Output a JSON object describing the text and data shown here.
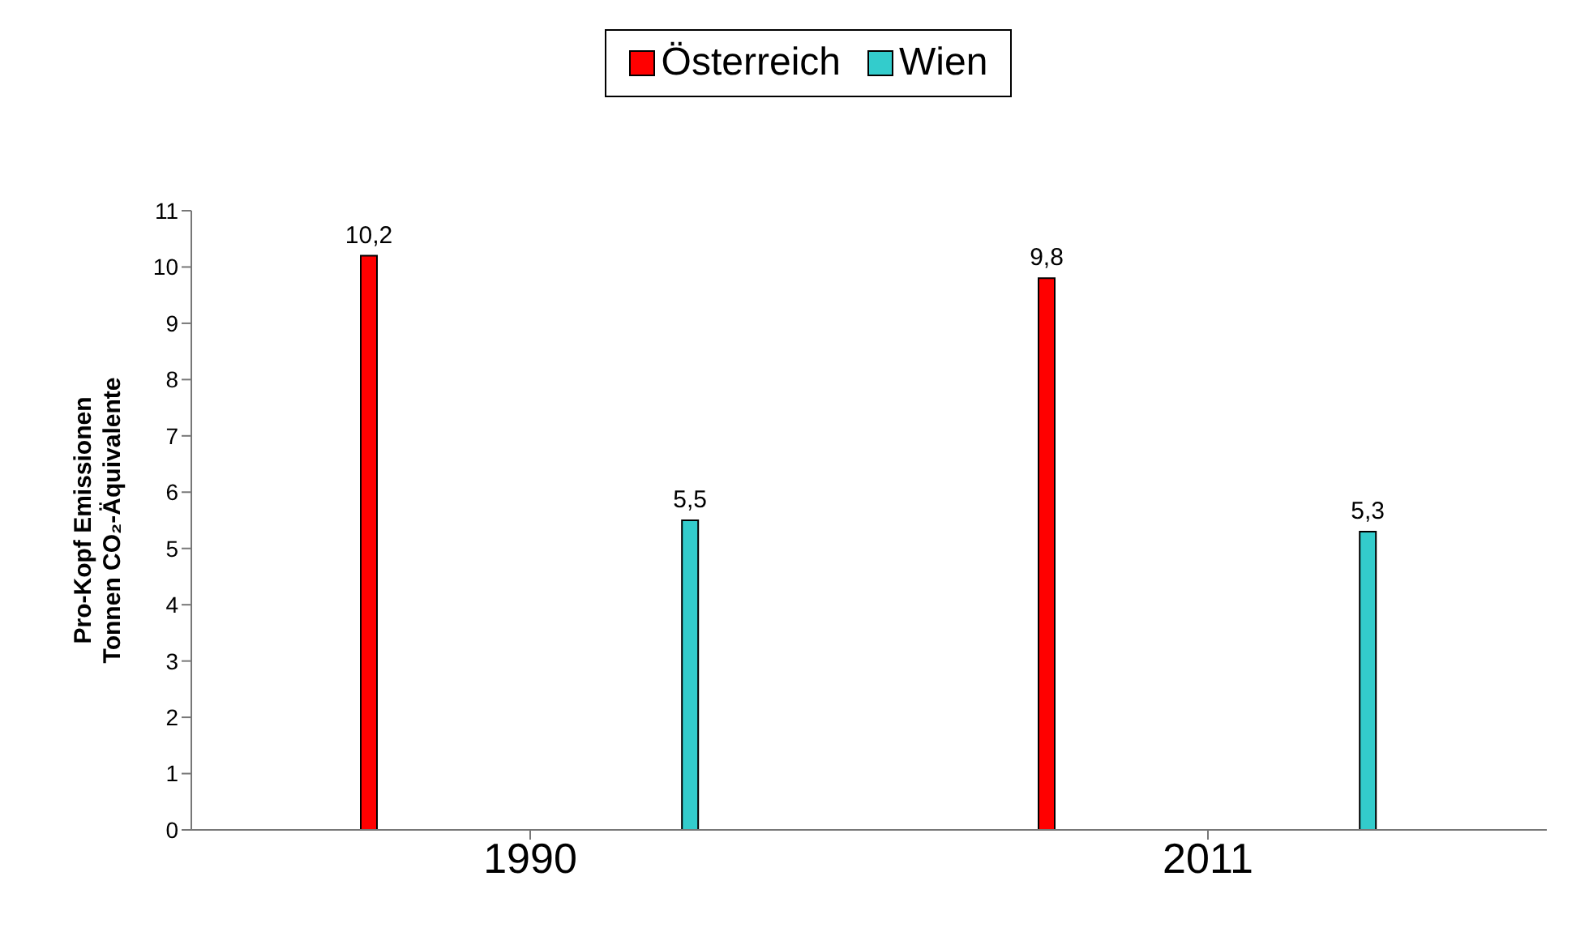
{
  "chart_data": {
    "type": "bar",
    "ylabel": "Pro-Kopf Emissionen\nTonnen CO₂-Äquivalente",
    "categories": [
      "1990",
      "2011"
    ],
    "series": [
      {
        "name": "Österreich",
        "color": "#ff0000",
        "values": [
          10.2,
          9.8
        ],
        "value_labels": [
          "10,2",
          "9,8"
        ]
      },
      {
        "name": "Wien",
        "color": "#33cccc",
        "values": [
          5.5,
          5.3
        ],
        "value_labels": [
          "5,5",
          "5,3"
        ]
      }
    ],
    "ylim": [
      0,
      11
    ],
    "yticks": [
      0,
      1,
      2,
      3,
      4,
      5,
      6,
      7,
      8,
      9,
      10,
      11
    ],
    "grid": false,
    "legend": "top"
  }
}
